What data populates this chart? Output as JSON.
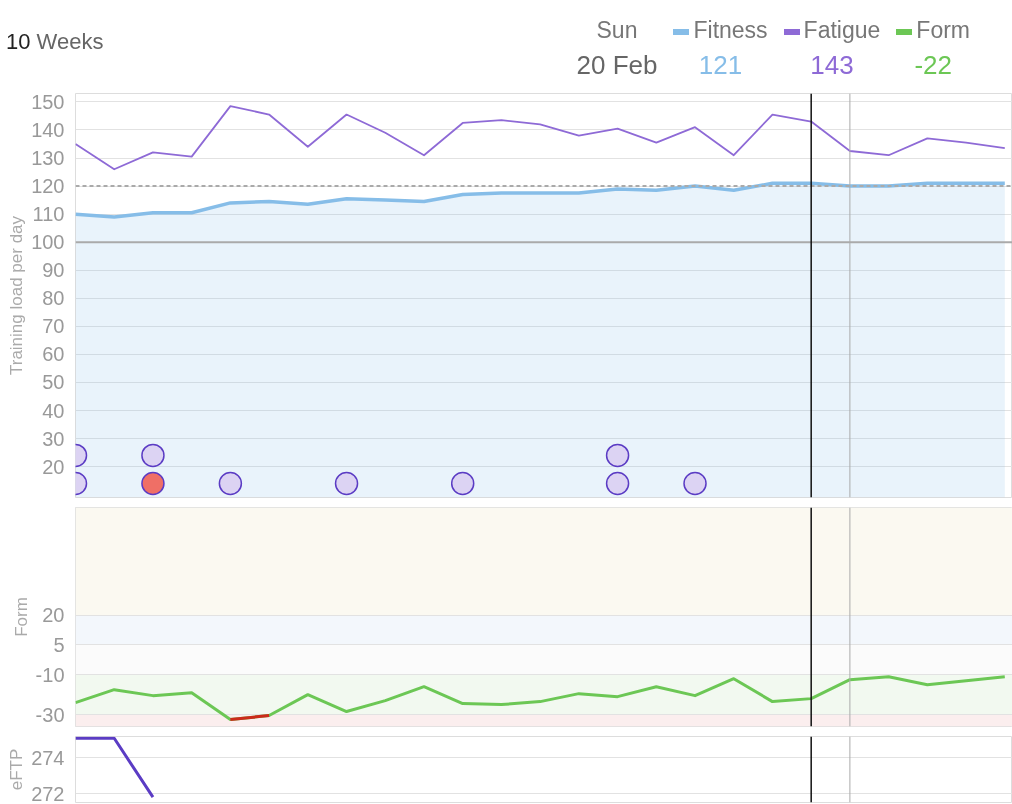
{
  "chart_data": [
    {
      "type": "line",
      "ylabel": "Training load per day",
      "categories": [
        null,
        null,
        null,
        null,
        null,
        null,
        null,
        null,
        null,
        null,
        null,
        null,
        null,
        null,
        null,
        null,
        null,
        null,
        null,
        null,
        null,
        null,
        null,
        null,
        null
      ],
      "ylim": [
        9,
        153
      ],
      "yticks": [
        20,
        30,
        40,
        50,
        60,
        70,
        80,
        90,
        100,
        110,
        120,
        130,
        140,
        150
      ],
      "tick_labels": "y",
      "grid": "y",
      "legend": "top right",
      "annotations": [
        "10 Weeks",
        "Sun",
        "20 Feb",
        "121",
        "143"
      ],
      "ref_lines": [
        {
          "axis": "y",
          "value": 120,
          "color": "#aaaaaa",
          "line_style": "dashed"
        },
        {
          "axis": "y",
          "value": 100,
          "color": "#aaaaaa",
          "line_style": "solid"
        }
      ],
      "series": [
        {
          "name": "Fitness",
          "type": "area",
          "color": "#86bde8",
          "values": [
            110,
            109,
            110.5,
            110.5,
            114,
            114.5,
            113.5,
            115.5,
            115,
            114.5,
            117,
            117.5,
            117.5,
            117.5,
            119,
            118.5,
            120,
            118.5,
            121,
            121,
            120,
            120,
            121,
            121,
            121
          ]
        },
        {
          "name": "Fatigue",
          "type": "line",
          "color": "#8e6ad6",
          "values": [
            135,
            126,
            132,
            130.5,
            148.5,
            145.5,
            134,
            145.5,
            139,
            131,
            142.5,
            143.5,
            142,
            138,
            140.5,
            135.5,
            141,
            131,
            145.5,
            143,
            132.5,
            131,
            137,
            135.5,
            133.5
          ]
        },
        {
          "type": "scatter",
          "color": "#5b3cc4",
          "values": [
            24,
            null,
            24,
            null,
            null,
            null,
            null,
            null,
            null,
            null,
            null,
            null,
            null,
            null,
            24,
            null,
            null,
            null,
            null,
            null,
            null,
            null,
            null,
            null,
            null
          ],
          "colors": [
            "#dcd3f3",
            null,
            "#dcd3f3",
            null,
            null,
            null,
            null,
            null,
            null,
            null,
            null,
            null,
            null,
            null,
            "#dcd3f3",
            null,
            null,
            null,
            null,
            null,
            null,
            null,
            null,
            null,
            null
          ]
        },
        {
          "type": "scatter",
          "color": "#5b3cc4",
          "values": [
            14,
            null,
            14,
            null,
            14,
            null,
            null,
            14,
            null,
            null,
            14,
            null,
            null,
            null,
            14,
            null,
            14,
            null,
            null,
            null,
            null,
            null,
            null,
            null,
            null
          ],
          "colors": [
            "#dcd3f3",
            null,
            "#ef6f66",
            null,
            "#dcd3f3",
            null,
            null,
            "#dcd3f3",
            null,
            null,
            "#dcd3f3",
            null,
            null,
            null,
            "#dcd3f3",
            null,
            "#dcd3f3",
            null,
            null,
            null,
            null,
            null,
            null,
            null,
            null
          ]
        }
      ]
    },
    {
      "type": "line",
      "ylabel": "Form",
      "categories": [
        null,
        null,
        null,
        null,
        null,
        null,
        null,
        null,
        null,
        null,
        null,
        null,
        null,
        null,
        null,
        null,
        null,
        null,
        null,
        null,
        null,
        null,
        null,
        null,
        null
      ],
      "ylim": [
        -36,
        74
      ],
      "yticks": [
        -30,
        -10,
        5,
        20
      ],
      "tick_labels": "y",
      "grid": "y",
      "legend": "top right",
      "annotations": [
        "-22"
      ],
      "bands": [
        {
          "axis": "y",
          "from": 20,
          "to": 74,
          "color": "#fbf9f1"
        },
        {
          "axis": "y",
          "from": 5,
          "to": 20,
          "color": "#f3f7fc"
        },
        {
          "axis": "y",
          "from": -10,
          "to": 5,
          "color": "#fbfbfb"
        },
        {
          "axis": "y",
          "from": -30,
          "to": -10,
          "color": "#f2f9f0"
        },
        {
          "axis": "y",
          "from": -36,
          "to": -30,
          "color": "#fbeeee"
        }
      ],
      "series": [
        {
          "name": "Form",
          "color": "#6cc755",
          "values": [
            -24,
            -17.5,
            -20.5,
            -19,
            -32.5,
            -30.5,
            -20,
            -28.5,
            -23,
            -16,
            -24.5,
            -25,
            -23.5,
            -19.5,
            -21,
            -16,
            -20.5,
            -12,
            -23.5,
            -22,
            -12.5,
            -11,
            -15,
            -13,
            -11
          ]
        },
        {
          "color": "#cc2a1a",
          "values": [
            null,
            null,
            null,
            null,
            -32.5,
            -30.5,
            null,
            null,
            null,
            null,
            null,
            null,
            null,
            null,
            null,
            null,
            null,
            null,
            null,
            null,
            null,
            null,
            null,
            null,
            null
          ]
        }
      ]
    },
    {
      "type": "line",
      "ylabel": "eFTP",
      "categories": [
        null,
        null,
        null,
        null,
        null,
        null,
        null,
        null,
        null,
        null,
        null,
        null,
        null,
        null,
        null,
        null,
        null,
        null,
        null,
        null,
        null,
        null,
        null,
        null,
        null
      ],
      "ylim": [
        271.5,
        275.2
      ],
      "yticks": [
        272,
        274
      ],
      "tick_labels": "y",
      "grid": "y",
      "series": [
        {
          "color": "#5b3cc4",
          "values": [
            275.1,
            275.1,
            271.8,
            null,
            null,
            null,
            null,
            null,
            null,
            null,
            null,
            null,
            null,
            null,
            null,
            null,
            null,
            null,
            null,
            null,
            null,
            null,
            null,
            null,
            null
          ]
        }
      ]
    }
  ]
}
